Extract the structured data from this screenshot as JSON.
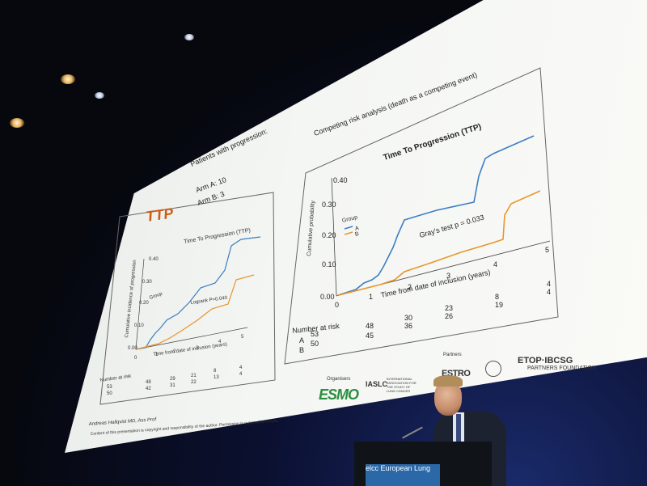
{
  "slide": {
    "ttp_heading": "TTP",
    "patients_title": "Patients with progression:",
    "arm_a": "Arm A: 10",
    "arm_b": "Arm B: 3",
    "left_plot": {
      "title": "Time To Progression (TTP)",
      "logrank": "Logrank P=0.040",
      "xlabel": "Time from date of inclusion (years)",
      "ylabel": "Cumulative incidence of progression",
      "legend_title": "Group",
      "yticks": [
        "0.40",
        "0.30",
        "0.20",
        "0.10",
        "0.00"
      ],
      "xticks": [
        "0",
        "1",
        "2",
        "3",
        "4",
        "5"
      ],
      "risk_title": "Number at risk",
      "risk_a": [
        "53",
        "48",
        "29",
        "21",
        "8",
        "4"
      ],
      "risk_b": [
        "50",
        "42",
        "31",
        "22",
        "13",
        "4"
      ]
    },
    "right_plot": {
      "heading": "Competing risk analysis (death as a competing event)",
      "title": "Time To Progression (TTP)",
      "grays": "Gray's test p = 0.033",
      "xlabel": "Time from date of inclusion (years)",
      "ylabel": "Cumulative probability",
      "legend_title": "Group",
      "legend_a": "A",
      "legend_b": "B",
      "yticks": [
        "0.40",
        "0.30",
        "0.20",
        "0.10",
        "0.00"
      ],
      "xticks": [
        "0",
        "1",
        "2",
        "3",
        "4",
        "5"
      ],
      "risk_title": "Number at risk",
      "risk_a_label": "A",
      "risk_b_label": "B",
      "risk_a": [
        "53",
        "48",
        "30",
        "23",
        "8",
        "4"
      ],
      "risk_b": [
        "50",
        "45",
        "36",
        "26",
        "19",
        "4"
      ]
    },
    "author": "Andreas Hallqvist MD, Ass Prof",
    "copyright": "Content of this presentation is copyright and responsibility of the author. Permission is required for re-use.",
    "organisers": "Organisers",
    "partners": "Partners",
    "esmo": "ESMO",
    "iaslc": "IASLC",
    "iaslc_sub": "INTERNATIONAL ASSOCIATION FOR THE STUDY OF LUNG CANCER",
    "estro": "ESTRO",
    "etop": "ETOP·IBCSG",
    "etop_sub": "PARTNERS FOUNDATION"
  },
  "podium": {
    "screen_text": "elcc European Lung"
  },
  "colors": {
    "arm_a": "#3a7ec4",
    "arm_b": "#e8962c"
  }
}
